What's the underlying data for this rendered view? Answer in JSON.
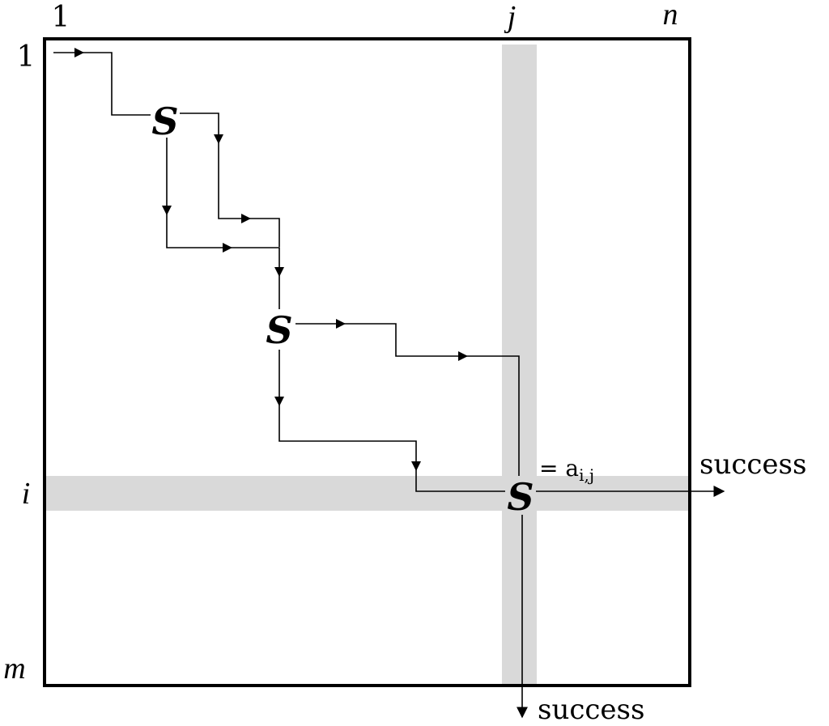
{
  "labels": {
    "col_first": "1",
    "col_j": "j",
    "col_last": "n",
    "row_first": "1",
    "row_i": "i",
    "row_last": "m",
    "node_symbol": "S",
    "entry": "= a",
    "entry_sub": "i,j",
    "success_right": "success",
    "success_down": "success"
  },
  "colors": {
    "highlight": "#d9d9d9",
    "stroke": "#000000"
  }
}
